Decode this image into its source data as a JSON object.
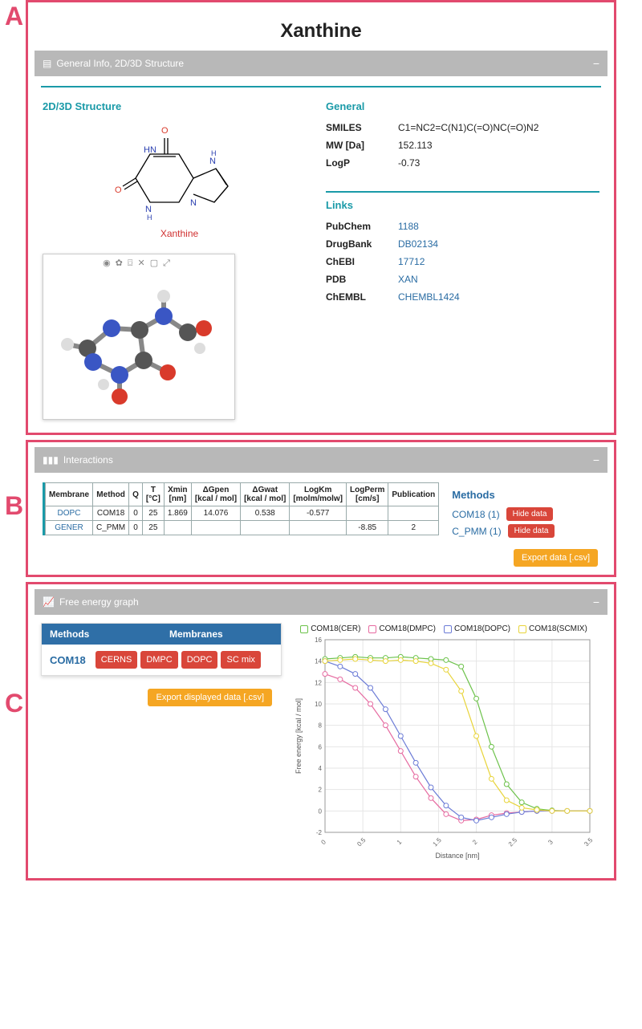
{
  "panelA": {
    "label": "A",
    "title": "Xanthine",
    "section_title": "General Info, 2D/3D Structure",
    "structure_heading": "2D/3D Structure",
    "structure_caption": "Xanthine",
    "viewer_icons": [
      "eye-icon",
      "gear-icon",
      "camera-icon",
      "tools-icon",
      "square-icon",
      "expand-icon"
    ],
    "general": {
      "heading": "General",
      "rows": [
        {
          "k": "SMILES",
          "v": "C1=NC2=C(N1)C(=O)NC(=O)N2"
        },
        {
          "k": "MW [Da]",
          "v": "152.113"
        },
        {
          "k": "LogP",
          "v": "-0.73"
        }
      ]
    },
    "links": {
      "heading": "Links",
      "rows": [
        {
          "k": "PubChem",
          "v": "1188"
        },
        {
          "k": "DrugBank",
          "v": "DB02134"
        },
        {
          "k": "ChEBI",
          "v": "17712"
        },
        {
          "k": "PDB",
          "v": "XAN"
        },
        {
          "k": "ChEMBL",
          "v": "CHEMBL1424"
        }
      ]
    },
    "colors": {
      "atom_O": "#d93a2b",
      "atom_N": "#2a3fb0",
      "atom_C": "#555555",
      "atom_H": "#dddddd",
      "bond_black": "#000000"
    }
  },
  "panelB": {
    "label": "B",
    "section_title": "Interactions",
    "table": {
      "columns": [
        "Membrane",
        "Method",
        "Q",
        "T\n[°C]",
        "Xmin\n[nm]",
        "ΔGpen\n[kcal / mol]",
        "ΔGwat\n[kcal / mol]",
        "LogKm\n[molm/molw]",
        "LogPerm\n[cm/s]",
        "Publication"
      ],
      "rows": [
        [
          "DOPC",
          "COM18",
          "0",
          "25",
          "1.869",
          "14.076",
          "0.538",
          "-0.577",
          "",
          ""
        ],
        [
          "GENER",
          "C_PMM",
          "0",
          "25",
          "",
          "",
          "",
          "",
          "-8.85",
          "2"
        ]
      ]
    },
    "methods": {
      "heading": "Methods",
      "items": [
        {
          "label": "COM18 (1)",
          "btn": "Hide data"
        },
        {
          "label": "C_PMM (1)",
          "btn": "Hide data"
        }
      ]
    },
    "export_label": "Export data [.csv]"
  },
  "panelC": {
    "label": "C",
    "section_title": "Free energy graph",
    "box": {
      "head_methods": "Methods",
      "head_membranes": "Membranes",
      "method": "COM18",
      "membranes": [
        "CERNS",
        "DMPC",
        "DOPC",
        "SC mix"
      ]
    },
    "export_label": "Export displayed data [.csv]",
    "chart": {
      "type": "line",
      "xlabel": "Distance [nm]",
      "ylabel": "Free energy [kcal / mol]",
      "xlim": [
        0,
        3.5
      ],
      "ylim": [
        -2,
        16
      ],
      "xticks": [
        0,
        0.5,
        1,
        1.5,
        2,
        2.5,
        3,
        3.5
      ],
      "yticks": [
        -2,
        0,
        2,
        4,
        6,
        8,
        10,
        12,
        14,
        16
      ],
      "label_fontsize": 9,
      "tick_fontsize": 8,
      "grid_color": "#e6e6e6",
      "background_color": "#ffffff",
      "marker": "circle",
      "marker_size": 3,
      "line_width": 1.2,
      "series": [
        {
          "name": "COM18(CER)",
          "color": "#6cc24a",
          "x": [
            0,
            0.2,
            0.4,
            0.6,
            0.8,
            1.0,
            1.2,
            1.4,
            1.6,
            1.8,
            2.0,
            2.2,
            2.4,
            2.6,
            2.8,
            3.0,
            3.2,
            3.5
          ],
          "y": [
            14.2,
            14.3,
            14.4,
            14.3,
            14.3,
            14.4,
            14.3,
            14.2,
            14.1,
            13.5,
            10.5,
            6.0,
            2.5,
            0.8,
            0.2,
            0.05,
            0.0,
            0.0
          ]
        },
        {
          "name": "COM18(DMPC)",
          "color": "#e66aa0",
          "x": [
            0,
            0.2,
            0.4,
            0.6,
            0.8,
            1.0,
            1.2,
            1.4,
            1.6,
            1.8,
            2.0,
            2.2,
            2.4,
            2.6,
            2.8,
            3.0,
            3.2,
            3.5
          ],
          "y": [
            12.8,
            12.3,
            11.5,
            10.0,
            8.0,
            5.6,
            3.2,
            1.2,
            -0.3,
            -0.9,
            -0.8,
            -0.4,
            -0.2,
            -0.1,
            0.0,
            0.0,
            0.0,
            0.0
          ]
        },
        {
          "name": "COM18(DOPC)",
          "color": "#6b7bd6",
          "x": [
            0,
            0.2,
            0.4,
            0.6,
            0.8,
            1.0,
            1.2,
            1.4,
            1.6,
            1.8,
            2.0,
            2.2,
            2.4,
            2.6,
            2.8,
            3.0,
            3.2,
            3.5
          ],
          "y": [
            14.0,
            13.5,
            12.8,
            11.5,
            9.5,
            7.0,
            4.5,
            2.2,
            0.5,
            -0.6,
            -0.9,
            -0.6,
            -0.3,
            -0.1,
            0.0,
            0.0,
            0.0,
            0.0
          ]
        },
        {
          "name": "COM18(SCMIX)",
          "color": "#e8d43a",
          "x": [
            0,
            0.2,
            0.4,
            0.6,
            0.8,
            1.0,
            1.2,
            1.4,
            1.6,
            1.8,
            2.0,
            2.2,
            2.4,
            2.6,
            2.8,
            3.0,
            3.2,
            3.5
          ],
          "y": [
            14.0,
            14.1,
            14.2,
            14.1,
            14.0,
            14.1,
            14.0,
            13.8,
            13.2,
            11.2,
            7.0,
            3.0,
            1.0,
            0.3,
            0.1,
            0.0,
            0.0,
            0.0
          ]
        }
      ]
    }
  }
}
